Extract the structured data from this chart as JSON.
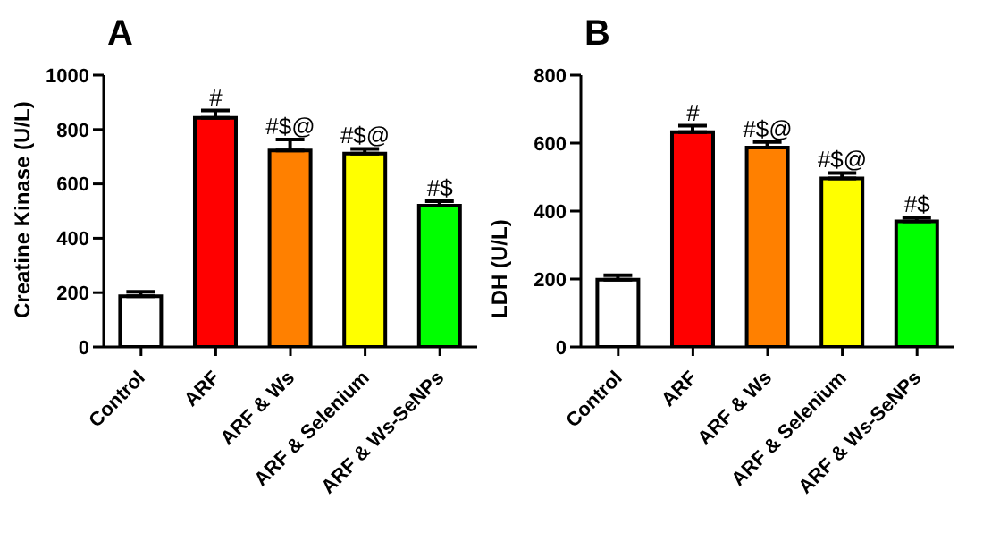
{
  "chart_data": [
    {
      "type": "bar",
      "title": "A",
      "ylabel": "Creatine Kinase (U/L)",
      "categories": [
        "Control",
        "ARF",
        "ARF & Ws",
        "ARF & Selenium",
        "ARF & Ws-SeNPs"
      ],
      "values": [
        187,
        843,
        723,
        711,
        520
      ],
      "errors": [
        16,
        27,
        40,
        18,
        16
      ],
      "colors": [
        "#ffffff",
        "#ff0000",
        "#ff8000",
        "#ffff00",
        "#00ff00"
      ],
      "ylim": [
        0,
        1000
      ],
      "yticks": [
        0,
        200,
        400,
        600,
        800,
        1000
      ],
      "grid": false,
      "legend": false,
      "annotations": [
        {
          "text": "#",
          "x": "ARF",
          "y": 870
        },
        {
          "text": "#$@",
          "x": "ARF & Ws",
          "y": 763
        },
        {
          "text": "#$@",
          "x": "ARF & Selenium",
          "y": 729
        },
        {
          "text": "#$",
          "x": "ARF & Ws-SeNPs",
          "y": 536
        }
      ]
    },
    {
      "type": "bar",
      "title": "B",
      "ylabel": "LDH (U/L)",
      "categories": [
        "Control",
        "ARF",
        "ARF & Ws",
        "ARF & Selenium",
        "ARF & Ws-SeNPs"
      ],
      "values": [
        198,
        632,
        587,
        496,
        370
      ],
      "errors": [
        13,
        19,
        16,
        16,
        11
      ],
      "colors": [
        "#ffffff",
        "#ff0000",
        "#ff8000",
        "#ffff00",
        "#00ff00"
      ],
      "ylim": [
        0,
        800
      ],
      "yticks": [
        0,
        200,
        400,
        600,
        800
      ],
      "grid": false,
      "legend": false,
      "annotations": [
        {
          "text": "#",
          "x": "ARF",
          "y": 651
        },
        {
          "text": "#$@",
          "x": "ARF & Ws",
          "y": 603
        },
        {
          "text": "#$@",
          "x": "ARF & Selenium",
          "y": 512
        },
        {
          "text": "#$",
          "x": "ARF & Ws-SeNPs",
          "y": 381
        }
      ]
    }
  ]
}
